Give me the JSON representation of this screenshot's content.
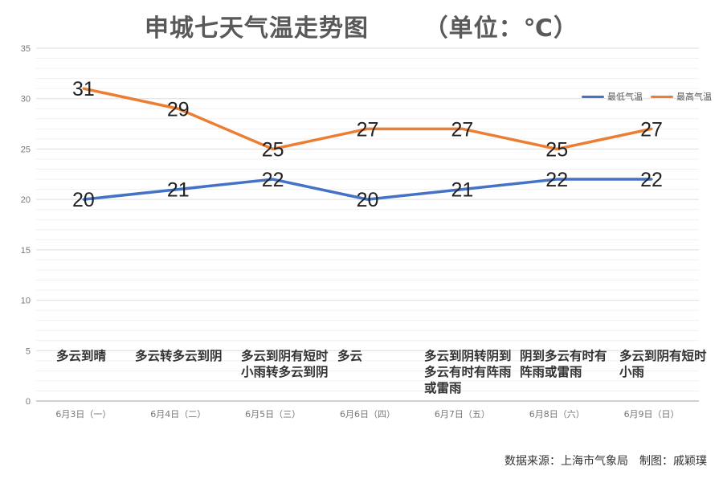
{
  "chart_data": {
    "type": "line",
    "title": "申城七天气温走势图",
    "unit_note": "（单位：℃）",
    "categories": [
      "6月3日（一）",
      "6月4日（二）",
      "6月5日（三）",
      "6月6日（四）",
      "6月7日（五）",
      "6月8日（六）",
      "6月9日（日）"
    ],
    "series": [
      {
        "name": "最低气温",
        "color": "#4472C4",
        "values": [
          20,
          21,
          22,
          20,
          21,
          22,
          22
        ]
      },
      {
        "name": "最高气温",
        "color": "#ED7D31",
        "values": [
          31,
          29,
          25,
          27,
          27,
          25,
          27
        ]
      }
    ],
    "weather": [
      "多云到晴",
      "多云转多云到阴",
      "多云到阴有短时小雨转多云到阴",
      "多云",
      "多云到阴转阴到多云有时有阵雨或雷雨",
      "阴到多云有时有阵雨或雷雨",
      "多云到阴有短时小雨"
    ],
    "ylim": [
      0,
      35
    ],
    "yticks": [
      0,
      5,
      10,
      15,
      20,
      25,
      30,
      35
    ],
    "grid": true,
    "legend": "right"
  },
  "footer": {
    "source": "数据来源：上海市气象局",
    "author": "制图：戚颖璞"
  }
}
